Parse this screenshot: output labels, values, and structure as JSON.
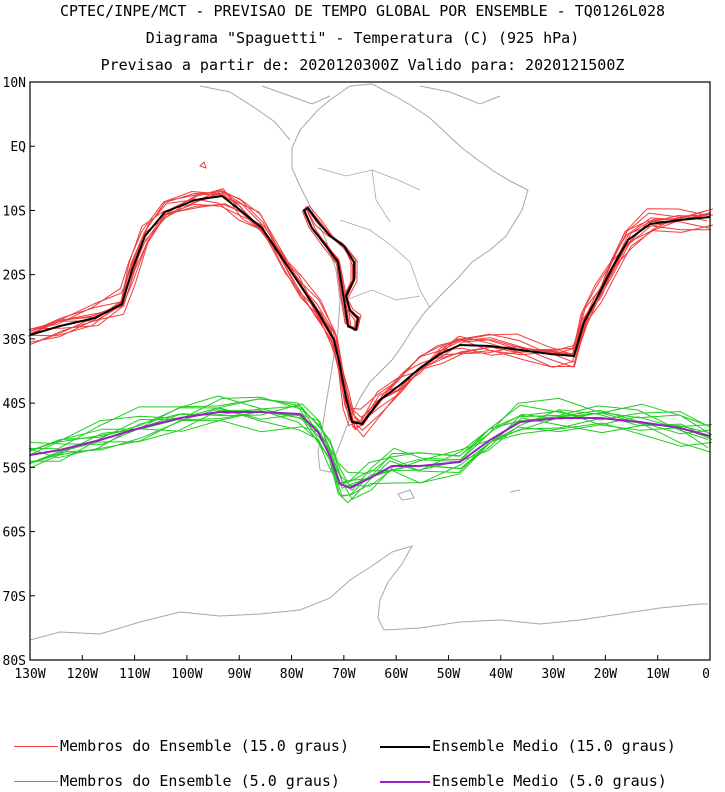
{
  "header": {
    "line1": "CPTEC/INPE/MCT - PREVISAO DE TEMPO GLOBAL POR ENSEMBLE - TQ0126L028",
    "line2": "Diagrama \"Spaguetti\" - Temperatura (C) (925 hPa)",
    "line3": "Previsao a partir de: 2020120300Z  Valido para: 2020121500Z"
  },
  "axes": {
    "lat_labels": [
      "10N",
      "EQ",
      "10S",
      "20S",
      "30S",
      "40S",
      "50S",
      "60S",
      "70S",
      "80S"
    ],
    "lon_labels": [
      "130W",
      "120W",
      "110W",
      "100W",
      "90W",
      "80W",
      "70W",
      "60W",
      "50W",
      "40W",
      "30W",
      "20W",
      "10W",
      "0"
    ]
  },
  "legend": [
    {
      "label": "Membros do Ensemble (15.0 graus)",
      "color": "#f03c3c"
    },
    {
      "label": "Ensemble Medio (15.0 graus)",
      "color": "#000000"
    },
    {
      "label": "Membros do Ensemble (5.0 graus)",
      "color": "#22cc22"
    },
    {
      "label": "Ensemble Medio (5.0 graus)",
      "color": "#9b1fc6"
    }
  ],
  "colors": {
    "coastline": "#a8a8a8",
    "red_members": "#f03c3c",
    "green_members": "#22cc22",
    "mean15": "#000000",
    "mean5": "#9b1fc6"
  }
}
